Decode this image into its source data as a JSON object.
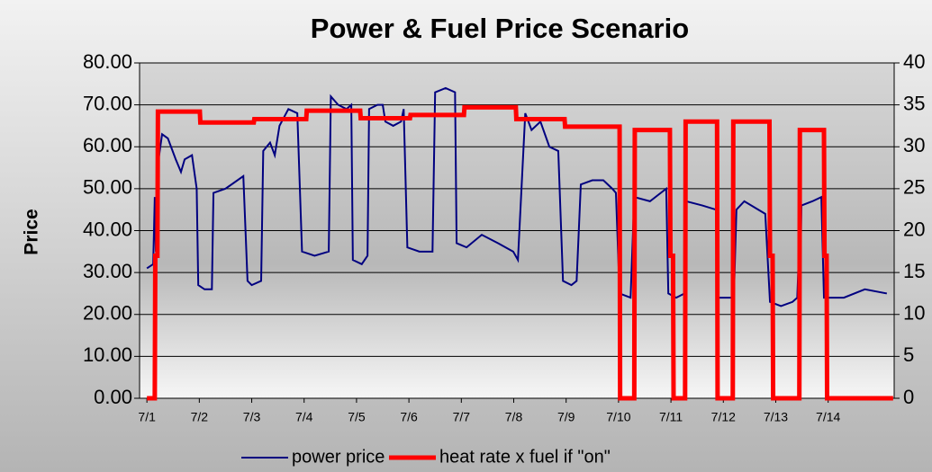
{
  "chart_data": {
    "type": "line",
    "title": "Power & Fuel Price Scenario",
    "y_label": "Price",
    "xlim": [
      -0.14,
      14.26
    ],
    "xticks": [
      {
        "value": 0,
        "label": "7/1"
      },
      {
        "value": 1,
        "label": "7/2"
      },
      {
        "value": 2,
        "label": "7/3"
      },
      {
        "value": 3,
        "label": "7/4"
      },
      {
        "value": 4,
        "label": "7/5"
      },
      {
        "value": 5,
        "label": "7/6"
      },
      {
        "value": 6,
        "label": "7/7"
      },
      {
        "value": 7,
        "label": "7/8"
      },
      {
        "value": 8,
        "label": "7/9"
      },
      {
        "value": 9,
        "label": "7/10"
      },
      {
        "value": 10,
        "label": "7/11"
      },
      {
        "value": 11,
        "label": "7/12"
      },
      {
        "value": 12,
        "label": "7/13"
      },
      {
        "value": 13,
        "label": "7/14"
      }
    ],
    "ylim": [
      0,
      80
    ],
    "yticks": [
      {
        "value": 0,
        "label": "0.00"
      },
      {
        "value": 10,
        "label": "10.00"
      },
      {
        "value": 20,
        "label": "20.00"
      },
      {
        "value": 30,
        "label": "30.00"
      },
      {
        "value": 40,
        "label": "40.00"
      },
      {
        "value": 50,
        "label": "50.00"
      },
      {
        "value": 60,
        "label": "60.00"
      },
      {
        "value": 70,
        "label": "70.00"
      },
      {
        "value": 80,
        "label": "80.00"
      }
    ],
    "y2lim": [
      0,
      40
    ],
    "y2ticks": [
      0,
      5,
      10,
      15,
      20,
      25,
      30,
      35,
      40
    ],
    "grid": true,
    "legend": "bottom",
    "series": [
      {
        "name": "power price",
        "color": "#000080",
        "axis": "y",
        "x": [
          0,
          0.12,
          0.15,
          0.17,
          0.2,
          0.29,
          0.4,
          0.55,
          0.65,
          0.72,
          0.86,
          0.95,
          0.98,
          1.1,
          1.24,
          1.27,
          1.5,
          1.84,
          1.92,
          2.0,
          2.18,
          2.22,
          2.35,
          2.44,
          2.53,
          2.7,
          2.87,
          2.96,
          3.2,
          3.47,
          3.51,
          3.65,
          3.81,
          3.9,
          3.93,
          4.1,
          4.21,
          4.24,
          4.4,
          4.5,
          4.55,
          4.7,
          4.85,
          4.9,
          4.97,
          5.2,
          5.45,
          5.5,
          5.7,
          5.88,
          5.91,
          6.1,
          6.39,
          6.7,
          6.99,
          7.08,
          7.22,
          7.34,
          7.51,
          7.68,
          7.85,
          7.94,
          8.1,
          8.2,
          8.28,
          8.5,
          8.71,
          8.88,
          8.95,
          9.02,
          9.23,
          9.3,
          9.6,
          9.91,
          9.95,
          10.1,
          10.26,
          10.29,
          10.6,
          10.86,
          10.89,
          11.2,
          11.25,
          11.4,
          11.8,
          11.89,
          12.1,
          12.32,
          12.41,
          12.44,
          12.47,
          12.49,
          12.7,
          12.87,
          12.92,
          13.3,
          13.7,
          14.12
        ],
        "values": [
          31,
          32,
          48,
          35,
          55,
          63,
          62,
          57,
          54,
          57,
          58,
          50,
          27,
          26,
          26,
          49,
          50,
          53,
          28,
          27,
          28,
          59,
          61,
          58,
          65,
          69,
          68,
          35,
          34,
          35,
          72,
          70,
          69,
          70,
          33,
          32,
          34,
          69,
          70,
          70,
          66,
          65,
          66,
          69,
          36,
          35,
          35,
          73,
          74,
          73,
          37,
          36,
          39,
          37,
          35,
          33,
          68,
          64,
          66,
          60,
          59,
          28,
          27,
          28,
          51,
          52,
          52,
          50,
          49,
          25,
          24,
          48,
          47,
          50,
          25,
          24,
          25,
          47,
          46,
          45,
          24,
          24,
          45,
          47,
          44,
          23,
          22,
          23,
          24,
          34,
          30,
          46,
          47,
          48,
          24,
          24,
          26,
          25
        ]
      },
      {
        "name": "heat rate x fuel if \"on\"",
        "color": "#ff0000",
        "axis": "y2",
        "x": [
          0,
          0.15,
          0.16,
          0.2,
          0.21,
          1.01,
          1.02,
          2.04,
          2.05,
          3.04,
          3.05,
          4.07,
          4.08,
          5.02,
          5.03,
          6.05,
          6.06,
          7.04,
          7.05,
          7.97,
          7.98,
          9.02,
          9.03,
          9.3,
          9.31,
          9.98,
          9.99,
          10.04,
          10.05,
          10.27,
          10.28,
          10.88,
          10.89,
          11.18,
          11.19,
          11.88,
          11.89,
          11.94,
          11.95,
          12.45,
          12.46,
          12.92,
          12.93,
          12.97,
          12.98,
          14.24
        ],
        "values": [
          0,
          0,
          17,
          17,
          34.2,
          34.2,
          32.9,
          32.9,
          33.3,
          33.3,
          34.3,
          34.3,
          33.4,
          33.4,
          33.8,
          33.8,
          34.7,
          34.7,
          33.3,
          33.3,
          32.4,
          32.4,
          0,
          0,
          32,
          32,
          17,
          17,
          0,
          0,
          33,
          33,
          0,
          0,
          33,
          33,
          17,
          17,
          0,
          0,
          32,
          32,
          17,
          17,
          0,
          0
        ]
      }
    ]
  }
}
